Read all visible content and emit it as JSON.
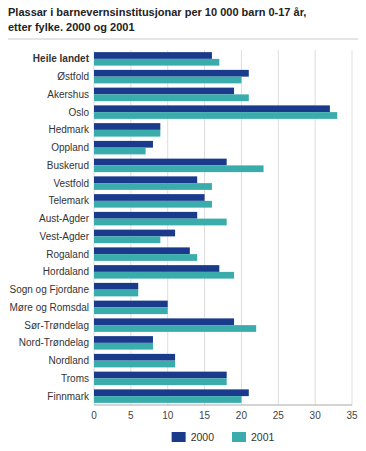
{
  "chart_data": {
    "type": "bar",
    "orientation": "horizontal",
    "title": "Plassar i barnevernsinstitusjonar per 10 000 barn 0-17 år,",
    "subtitle": "etter fylke. 2000 og 2001",
    "categories": [
      "Heile landet",
      "Østfold",
      "Akershus",
      "Oslo",
      "Hedmark",
      "Oppland",
      "Buskerud",
      "Vestfold",
      "Telemark",
      "Aust-Agder",
      "Vest-Agder",
      "Rogaland",
      "Hordaland",
      "Sogn og Fjordane",
      "Møre og Romsdal",
      "Sør-Trøndelag",
      "Nord-Trøndelag",
      "Nordland",
      "Troms",
      "Finnmark"
    ],
    "series": [
      {
        "name": "2000",
        "color": "#1a3a8c",
        "values": [
          16,
          21,
          19,
          32,
          9,
          8,
          18,
          14,
          15,
          14,
          11,
          13,
          17,
          6,
          10,
          19,
          8,
          11,
          18,
          21
        ]
      },
      {
        "name": "2001",
        "color": "#3aacac",
        "values": [
          17,
          20,
          21,
          33,
          9,
          7,
          23,
          16,
          16,
          18,
          9,
          14,
          19,
          6,
          10,
          22,
          8,
          11,
          18,
          20
        ]
      }
    ],
    "xlim": [
      0,
      35
    ],
    "xticks": [
      0,
      5,
      10,
      15,
      20,
      25,
      30,
      35
    ],
    "grid": true,
    "legend": "bottom"
  }
}
